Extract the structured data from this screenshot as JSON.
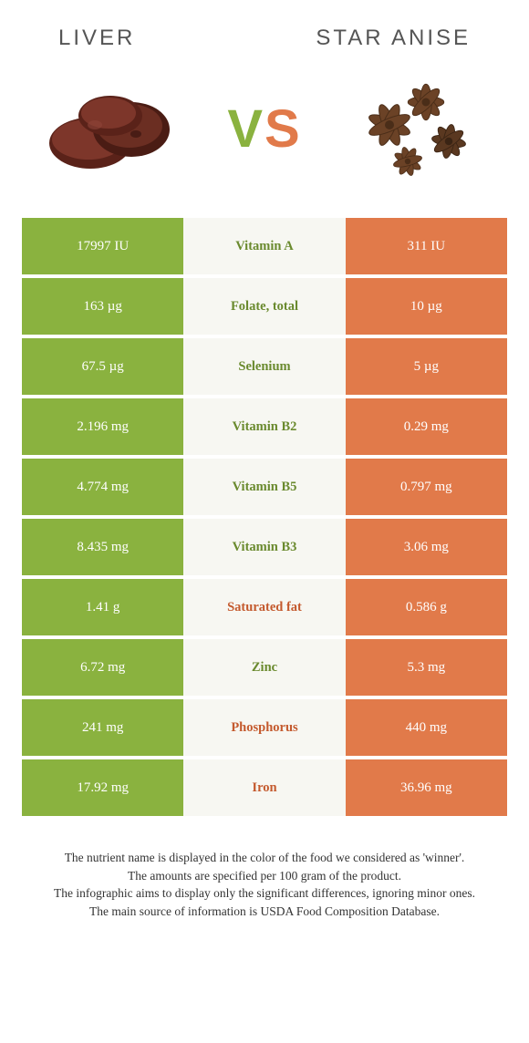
{
  "header": {
    "left_title": "Liver",
    "right_title": "Star Anise"
  },
  "vs": {
    "v": "V",
    "s": "S"
  },
  "colors": {
    "green": "#8ab23f",
    "orange": "#e17a4a",
    "mid_bg": "#f7f7f2",
    "mid_green_text": "#6a8a2e",
    "mid_orange_text": "#c45a2e",
    "title_text": "#555555",
    "liver_dark": "#5a2219",
    "liver_light": "#7d362a",
    "anise_brown": "#6b4226",
    "anise_dark": "#4a2d18"
  },
  "rows": [
    {
      "left": "17997 IU",
      "mid": "Vitamin A",
      "right": "311 IU",
      "winner": "left"
    },
    {
      "left": "163 µg",
      "mid": "Folate, total",
      "right": "10 µg",
      "winner": "left"
    },
    {
      "left": "67.5 µg",
      "mid": "Selenium",
      "right": "5 µg",
      "winner": "left"
    },
    {
      "left": "2.196 mg",
      "mid": "Vitamin B2",
      "right": "0.29 mg",
      "winner": "left"
    },
    {
      "left": "4.774 mg",
      "mid": "Vitamin B5",
      "right": "0.797 mg",
      "winner": "left"
    },
    {
      "left": "8.435 mg",
      "mid": "Vitamin B3",
      "right": "3.06 mg",
      "winner": "left"
    },
    {
      "left": "1.41 g",
      "mid": "Saturated fat",
      "right": "0.586 g",
      "winner": "right"
    },
    {
      "left": "6.72 mg",
      "mid": "Zinc",
      "right": "5.3 mg",
      "winner": "left"
    },
    {
      "left": "241 mg",
      "mid": "Phosphorus",
      "right": "440 mg",
      "winner": "right"
    },
    {
      "left": "17.92 mg",
      "mid": "Iron",
      "right": "36.96 mg",
      "winner": "right"
    }
  ],
  "footer": {
    "line1": "The nutrient name is displayed in the color of the food we considered as 'winner'.",
    "line2": "The amounts are specified per 100 gram of the product.",
    "line3": "The infographic aims to display only the significant differences, ignoring minor ones.",
    "line4": "The main source of information is USDA Food Composition Database."
  }
}
